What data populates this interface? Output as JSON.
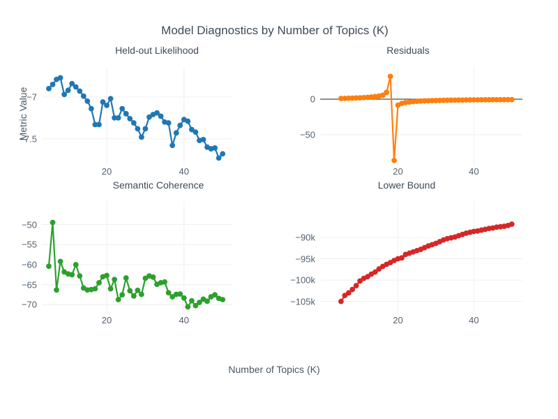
{
  "figure": {
    "title": "Model Diagnostics by Number of Topics (K)",
    "x_axis_title": "Number of Topics (K)",
    "y_axis_title": "Metric Value",
    "background_color": "#ffffff",
    "text_color": "#3d4a57",
    "tick_color": "#53606e",
    "grid_color": "#efefef",
    "zeroline_color": "#4a4a4a"
  },
  "chart_data": [
    {
      "type": "line",
      "title": "Held-out Likelihood",
      "color": "#1f77b4",
      "marker": "circle",
      "x": [
        5,
        6,
        7,
        8,
        9,
        10,
        11,
        12,
        13,
        14,
        15,
        16,
        17,
        18,
        19,
        20,
        21,
        22,
        23,
        24,
        25,
        26,
        27,
        28,
        29,
        30,
        31,
        32,
        33,
        34,
        35,
        36,
        37,
        38,
        39,
        40,
        41,
        42,
        43,
        44,
        45,
        46,
        47,
        48,
        49,
        50
      ],
      "y": [
        -6.9,
        -6.85,
        -6.79,
        -6.77,
        -6.97,
        -6.92,
        -6.84,
        -6.88,
        -6.93,
        -6.99,
        -7.05,
        -7.14,
        -7.33,
        -7.33,
        -7.06,
        -7.1,
        -7.02,
        -7.25,
        -7.25,
        -7.14,
        -7.2,
        -7.26,
        -7.31,
        -7.38,
        -7.48,
        -7.38,
        -7.24,
        -7.21,
        -7.19,
        -7.23,
        -7.3,
        -7.31,
        -7.58,
        -7.43,
        -7.34,
        -7.27,
        -7.29,
        -7.39,
        -7.42,
        -7.52,
        -7.51,
        -7.6,
        -7.62,
        -7.61,
        -7.73,
        -7.68
      ],
      "xlim": [
        3.2,
        52.5
      ],
      "ylim": [
        -7.82,
        -6.65
      ],
      "xticks": [
        {
          "v": 20,
          "label": "20"
        },
        {
          "v": 40,
          "label": "40"
        }
      ],
      "yticks": [
        {
          "v": -7,
          "label": "−7"
        },
        {
          "v": -7.5,
          "label": "−7.5"
        }
      ],
      "zeroline": false,
      "grid": true
    },
    {
      "type": "line",
      "title": "Residuals",
      "color": "#ff7f0e",
      "marker": "circle",
      "x": [
        5,
        6,
        7,
        8,
        9,
        10,
        11,
        12,
        13,
        14,
        15,
        16,
        17,
        18,
        19,
        20,
        21,
        22,
        23,
        24,
        25,
        26,
        27,
        28,
        29,
        30,
        31,
        32,
        33,
        34,
        35,
        36,
        37,
        38,
        39,
        40,
        41,
        42,
        43,
        44,
        45,
        46,
        47,
        48,
        49,
        50
      ],
      "y": [
        1.0,
        1.1,
        1.3,
        1.5,
        1.7,
        1.9,
        2.2,
        2.6,
        3.0,
        3.6,
        4.4,
        5.5,
        9.5,
        32,
        -86,
        -8.5,
        -6.0,
        -4.8,
        -4.0,
        -3.4,
        -3.0,
        -2.7,
        -2.4,
        -2.2,
        -2.0,
        -1.9,
        -1.75,
        -1.6,
        -1.5,
        -1.4,
        -1.35,
        -1.25,
        -1.2,
        -1.1,
        -1.05,
        -1.0,
        -0.95,
        -0.9,
        -0.85,
        -0.8,
        -0.78,
        -0.75,
        -0.72,
        -0.7,
        -0.68,
        -0.65
      ],
      "xlim": [
        -0.5,
        52.8
      ],
      "ylim": [
        -93.1,
        44.1
      ],
      "xticks": [
        {
          "v": 20,
          "label": "20"
        },
        {
          "v": 40,
          "label": "40"
        }
      ],
      "yticks": [
        {
          "v": 0,
          "label": "0"
        },
        {
          "v": -50,
          "label": "−50"
        }
      ],
      "zeroline": true,
      "grid": true
    },
    {
      "type": "line",
      "title": "Semantic Coherence",
      "color": "#2ca02c",
      "marker": "circle",
      "x": [
        5,
        6,
        7,
        8,
        9,
        10,
        11,
        12,
        13,
        14,
        15,
        16,
        17,
        18,
        19,
        20,
        21,
        22,
        23,
        24,
        25,
        26,
        27,
        28,
        29,
        30,
        31,
        32,
        33,
        34,
        35,
        36,
        37,
        38,
        39,
        40,
        41,
        42,
        43,
        44,
        45,
        46,
        47,
        48,
        49,
        50
      ],
      "y": [
        -60.4,
        -49.5,
        -66.3,
        -59.2,
        -61.8,
        -62.3,
        -62.5,
        -60.0,
        -62.8,
        -65.8,
        -66.3,
        -66.2,
        -66.0,
        -64.5,
        -63.0,
        -62.7,
        -66.0,
        -63.7,
        -68.7,
        -67.5,
        -63.3,
        -66.5,
        -67.8,
        -66.4,
        -67.4,
        -63.4,
        -62.8,
        -63.1,
        -64.9,
        -64.5,
        -64.3,
        -67.0,
        -68.0,
        -67.4,
        -67.3,
        -68.3,
        -70.5,
        -69.0,
        -70.2,
        -69.4,
        -68.6,
        -69.1,
        -68.0,
        -67.5,
        -68.4,
        -68.7
      ],
      "xlim": [
        3.2,
        52.5
      ],
      "ylim": [
        -72.35,
        -44.17
      ],
      "xticks": [
        {
          "v": 20,
          "label": "20"
        },
        {
          "v": 40,
          "label": "40"
        }
      ],
      "yticks": [
        {
          "v": -50,
          "label": "−50"
        },
        {
          "v": -55,
          "label": "−55"
        },
        {
          "v": -60,
          "label": "−60"
        },
        {
          "v": -65,
          "label": "−65"
        },
        {
          "v": -70,
          "label": "−70"
        }
      ],
      "zeroline": false,
      "grid": true
    },
    {
      "type": "line",
      "title": "Lower Bound",
      "color": "#d62728",
      "marker": "circle",
      "unit": "thousands",
      "x": [
        5,
        6,
        7,
        8,
        9,
        10,
        11,
        12,
        13,
        14,
        15,
        16,
        17,
        18,
        19,
        20,
        21,
        22,
        23,
        24,
        25,
        26,
        27,
        28,
        29,
        30,
        31,
        32,
        33,
        34,
        35,
        36,
        37,
        38,
        39,
        40,
        41,
        42,
        43,
        44,
        45,
        46,
        47,
        48,
        49,
        50
      ],
      "y": [
        -105.0,
        -103.6,
        -103.0,
        -102.2,
        -101.3,
        -100.2,
        -99.6,
        -99.2,
        -98.6,
        -98.1,
        -97.4,
        -96.8,
        -96.3,
        -95.9,
        -95.4,
        -95.0,
        -94.8,
        -94.0,
        -93.7,
        -93.4,
        -93.1,
        -92.8,
        -92.4,
        -92.0,
        -91.7,
        -91.4,
        -91.0,
        -90.6,
        -90.3,
        -90.1,
        -89.9,
        -89.6,
        -89.3,
        -89.0,
        -88.8,
        -88.6,
        -88.5,
        -88.3,
        -88.1,
        -87.9,
        -87.8,
        -87.6,
        -87.5,
        -87.4,
        -87.2,
        -86.9
      ],
      "xlim": [
        -0.5,
        52.8
      ],
      "ylim": [
        -108.0,
        -81.5
      ],
      "xticks": [
        {
          "v": 20,
          "label": "20"
        },
        {
          "v": 40,
          "label": "40"
        }
      ],
      "yticks": [
        {
          "v": -90,
          "label": "−90k"
        },
        {
          "v": -95,
          "label": "−95k"
        },
        {
          "v": -100,
          "label": "−100k"
        },
        {
          "v": -105,
          "label": "−105k"
        }
      ],
      "zeroline": false,
      "grid": true
    }
  ]
}
